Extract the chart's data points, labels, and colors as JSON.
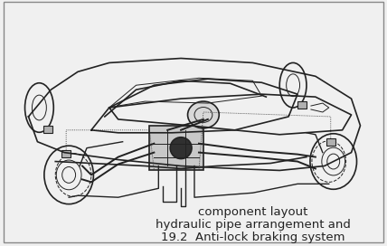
{
  "title_line1": "19.2  Anti-lock braking system",
  "title_line2": "hydraulic pipe arrangement and",
  "title_line3": "component layout",
  "bg_color": "#f0f0f0",
  "border_color": "#888888",
  "text_color": "#222222",
  "title_fontsize": 9.5,
  "fig_width": 4.28,
  "fig_height": 2.72,
  "dpi": 100
}
